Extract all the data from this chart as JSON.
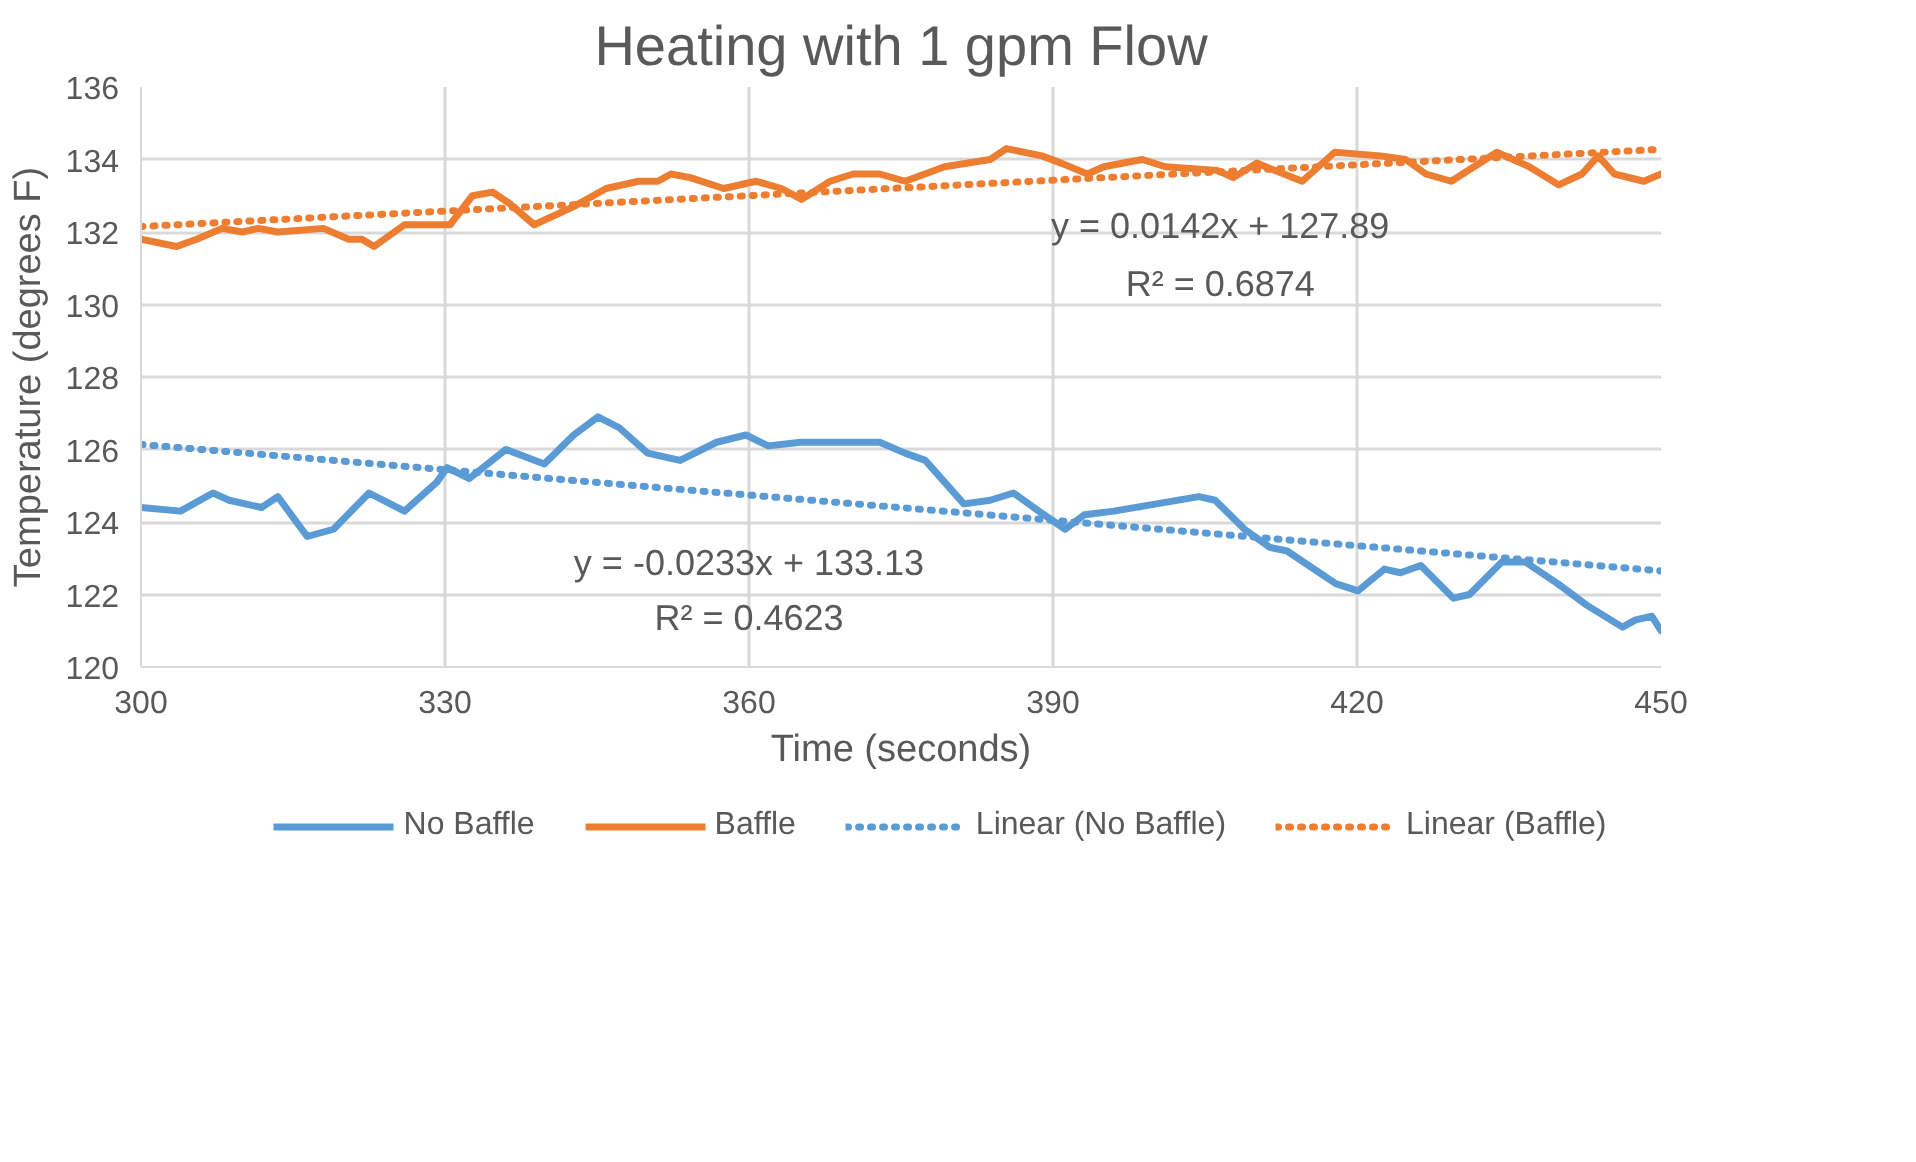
{
  "chart_data": {
    "type": "line",
    "title": "Heating with 1 gpm Flow",
    "xlabel": "Time (seconds)",
    "ylabel": "Temperature (degrees F)",
    "xlim": [
      300,
      450
    ],
    "xticks": [
      300,
      330,
      360,
      390,
      420,
      450
    ],
    "ylim": [
      120,
      136
    ],
    "yticks": [
      120,
      122,
      124,
      126,
      128,
      130,
      132,
      134,
      136
    ],
    "grid": true,
    "legend": "bottom",
    "line_style": "solid",
    "series": [
      {
        "name": "No Baffle",
        "color": "#5b9bd5",
        "x": [
          300,
          303.9,
          307.1,
          308.7,
          311.9,
          313.5,
          316.4,
          319,
          322.5,
          326,
          329.2,
          330.2,
          332.4,
          336,
          339.8,
          342.7,
          345.1,
          347.2,
          350,
          353.2,
          356.8,
          359.7,
          361.9,
          365.1,
          369.6,
          372.9,
          375.4,
          377.4,
          381.2,
          383.8,
          386.1,
          388.6,
          391.2,
          393.1,
          396,
          400.2,
          404.4,
          406,
          408.9,
          411.4,
          413.1,
          417.9,
          420.1,
          422.7,
          424.3,
          426.3,
          429.5,
          431.1,
          434.3,
          436.6,
          439.8,
          442.7,
          446.2,
          447.5,
          449.1,
          450
        ],
        "values": [
          124.4,
          124.3,
          124.8,
          124.6,
          124.4,
          124.7,
          123.6,
          123.8,
          124.8,
          124.3,
          125.1,
          125.5,
          125.2,
          126.0,
          125.6,
          126.4,
          126.9,
          126.6,
          125.9,
          125.7,
          126.2,
          126.4,
          126.1,
          126.2,
          126.2,
          126.2,
          125.9,
          125.7,
          124.5,
          124.6,
          124.8,
          124.3,
          123.8,
          124.2,
          124.3,
          124.5,
          124.7,
          124.6,
          123.8,
          123.3,
          123.2,
          122.3,
          122.1,
          122.7,
          122.6,
          122.8,
          121.9,
          122.0,
          122.9,
          122.9,
          122.3,
          121.7,
          121.1,
          121.3,
          121.4,
          121.0
        ]
      },
      {
        "name": "Baffle",
        "color": "#ed7d31",
        "x": [
          300,
          303.5,
          305.5,
          308,
          310,
          311.6,
          313.5,
          318,
          320.5,
          321.8,
          323,
          326,
          330.5,
          332.7,
          334.7,
          336.3,
          338.8,
          342.7,
          345.9,
          349.1,
          351,
          352.3,
          354.2,
          357.5,
          360.7,
          363.2,
          365.2,
          368,
          370.3,
          372.9,
          375.4,
          379.3,
          383.8,
          385.4,
          388.9,
          390.8,
          393.4,
          395,
          398.8,
          401.1,
          406.2,
          407.8,
          410.1,
          414.6,
          417.8,
          422.3,
          424.8,
          426.8,
          429.3,
          433.8,
          437,
          439.9,
          442.2,
          443.8,
          445.4,
          448.3,
          450
        ],
        "values": [
          131.8,
          131.6,
          131.8,
          132.1,
          132.0,
          132.1,
          132.0,
          132.1,
          131.8,
          131.8,
          131.6,
          132.2,
          132.2,
          133.0,
          133.1,
          132.8,
          132.2,
          132.7,
          133.2,
          133.4,
          133.4,
          133.6,
          133.5,
          133.2,
          133.4,
          133.2,
          132.9,
          133.4,
          133.6,
          133.6,
          133.4,
          133.8,
          134.0,
          134.3,
          134.1,
          133.9,
          133.6,
          133.8,
          134.0,
          133.8,
          133.7,
          133.5,
          133.9,
          133.4,
          134.2,
          134.1,
          134.0,
          133.6,
          133.4,
          134.2,
          133.8,
          133.3,
          133.6,
          134.1,
          133.6,
          133.4,
          133.6
        ]
      },
      {
        "name": "Linear (No Baffle)",
        "color": "#5b9bd5",
        "line_style": "dotted",
        "x": [
          300,
          450
        ],
        "values": [
          126.14,
          122.65
        ]
      },
      {
        "name": "Linear (Baffle)",
        "color": "#ed7d31",
        "line_style": "dotted",
        "x": [
          300,
          450
        ],
        "values": [
          132.15,
          134.28
        ]
      }
    ],
    "annotations": [
      "y = 0.0142x + 127.89",
      "R² = 0.6874",
      "y = -0.0233x + 133.13",
      "R² = 0.4623"
    ]
  }
}
